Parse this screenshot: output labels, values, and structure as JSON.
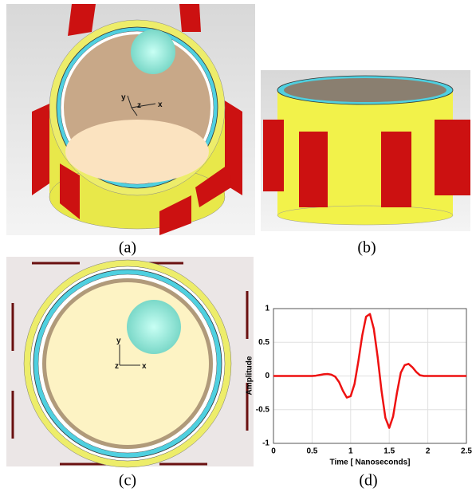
{
  "panels": [
    {
      "caption": "(a)",
      "axis_labels": [
        "y",
        "z",
        "x"
      ]
    },
    {
      "caption": "(b)"
    },
    {
      "caption": "(c)",
      "axis_labels": [
        "y",
        "z",
        "x"
      ]
    },
    {
      "caption": "(d)"
    }
  ],
  "chart_data": {
    "type": "line",
    "x_label": "Time [ Nanoseconds]",
    "y_label": "Amplitude",
    "x": [
      0,
      0.5,
      0.55,
      0.6,
      0.65,
      0.7,
      0.75,
      0.8,
      0.85,
      0.9,
      0.95,
      1.0,
      1.05,
      1.1,
      1.15,
      1.2,
      1.25,
      1.3,
      1.35,
      1.4,
      1.45,
      1.5,
      1.55,
      1.6,
      1.65,
      1.7,
      1.75,
      1.8,
      1.85,
      1.9,
      1.95,
      2.0,
      2.5
    ],
    "values": [
      0,
      0,
      0.005,
      0.015,
      0.025,
      0.03,
      0.02,
      -0.01,
      -0.09,
      -0.22,
      -0.32,
      -0.3,
      -0.12,
      0.22,
      0.6,
      0.88,
      0.92,
      0.7,
      0.28,
      -0.22,
      -0.62,
      -0.77,
      -0.6,
      -0.25,
      0.05,
      0.16,
      0.18,
      0.13,
      0.06,
      0.01,
      0,
      0,
      0
    ],
    "color": "#ee1111",
    "xlim": [
      0,
      2.5
    ],
    "ylim": [
      -1,
      1
    ],
    "xticks": [
      0,
      0.5,
      1,
      1.5,
      2,
      2.5
    ],
    "yticks": [
      -1,
      -0.5,
      0,
      0.5,
      1
    ],
    "grid": true
  }
}
